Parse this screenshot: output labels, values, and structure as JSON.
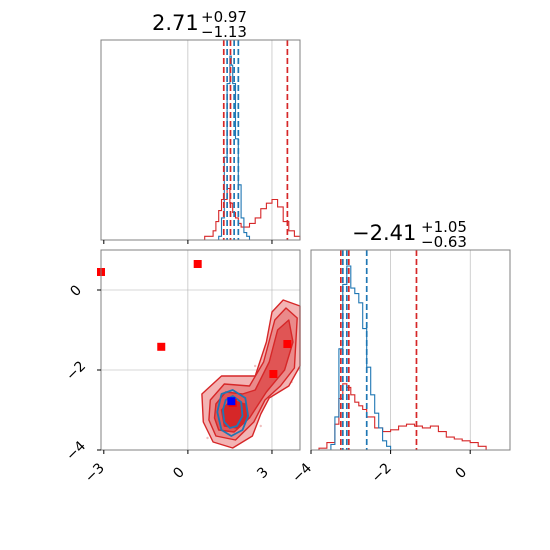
{
  "colors": {
    "red": "#d62728",
    "blue": "#1f77b4",
    "marker_blue": "#0000ff",
    "marker_red": "#ff0000",
    "grid": "#b0b0b0"
  },
  "titles": {
    "p1": {
      "median": "2.71",
      "plus": "+0.97",
      "minus": "−1.13"
    },
    "p2": {
      "median": "−2.41",
      "plus": "+1.05",
      "minus": "−0.63"
    }
  },
  "chart_data": [
    {
      "panel": "marginal-p1",
      "type": "histogram",
      "xlim": [
        -3.1,
        4.0
      ],
      "grid": true,
      "series": [
        {
          "color": "red",
          "x": [
            -3.1,
            -2.5,
            -1.5,
            -0.5,
            0.3,
            0.6,
            0.9,
            1.0,
            1.1,
            1.2,
            1.3,
            1.4,
            1.5,
            1.6,
            1.7,
            1.8,
            1.9,
            2.0,
            2.2,
            2.4,
            2.6,
            2.8,
            3.0,
            3.2,
            3.4,
            3.6,
            3.8,
            4.0
          ],
          "y": [
            0,
            0,
            0,
            0,
            0,
            0.02,
            0.05,
            0.1,
            0.16,
            0.22,
            0.22,
            0.28,
            0.2,
            0.15,
            0.12,
            0.09,
            0.07,
            0.07,
            0.09,
            0.12,
            0.17,
            0.2,
            0.22,
            0.18,
            0.1,
            0.05,
            0.02,
            0
          ]
        },
        {
          "color": "blue",
          "x": [
            0.9,
            1.1,
            1.2,
            1.3,
            1.4,
            1.5,
            1.55,
            1.6,
            1.7,
            1.8,
            1.9,
            2.0,
            2.1,
            2.2
          ],
          "y": [
            0,
            0.02,
            0.12,
            0.45,
            0.85,
            1.0,
            0.95,
            0.85,
            0.55,
            0.3,
            0.12,
            0.04,
            0.02,
            0
          ]
        }
      ],
      "vlines": [
        {
          "color": "red",
          "x": [
            1.28,
            1.52,
            3.55
          ]
        },
        {
          "color": "blue",
          "x": [
            1.4,
            1.65,
            1.8
          ]
        }
      ]
    },
    {
      "panel": "marginal-p2",
      "type": "histogram",
      "xlim": [
        -4.0,
        1.0
      ],
      "grid": true,
      "series": [
        {
          "color": "red",
          "x": [
            -4.0,
            -3.8,
            -3.6,
            -3.4,
            -3.3,
            -3.2,
            -3.1,
            -3.0,
            -2.9,
            -2.8,
            -2.7,
            -2.6,
            -2.4,
            -2.2,
            -2.0,
            -1.8,
            -1.6,
            -1.4,
            -1.2,
            -1.0,
            -0.8,
            -0.6,
            -0.4,
            -0.2,
            0.0,
            0.2,
            0.4
          ],
          "y": [
            0,
            0.01,
            0.04,
            0.14,
            0.28,
            0.36,
            0.34,
            0.3,
            0.26,
            0.24,
            0.22,
            0.18,
            0.12,
            0.1,
            0.11,
            0.13,
            0.14,
            0.13,
            0.12,
            0.13,
            0.1,
            0.07,
            0.06,
            0.05,
            0.04,
            0.02,
            0
          ]
        },
        {
          "color": "blue",
          "x": [
            -3.7,
            -3.5,
            -3.4,
            -3.3,
            -3.2,
            -3.1,
            -3.0,
            -2.9,
            -2.8,
            -2.7,
            -2.6,
            -2.5,
            -2.4,
            -2.3,
            -2.2,
            -2.1,
            -2.0
          ],
          "y": [
            0,
            0.03,
            0.18,
            0.55,
            0.9,
            1.0,
            0.88,
            0.85,
            0.8,
            0.66,
            0.45,
            0.3,
            0.2,
            0.12,
            0.05,
            0.02,
            0
          ]
        }
      ],
      "vlines": [
        {
          "color": "red",
          "x": [
            -3.25,
            -3.05,
            -1.35
          ]
        },
        {
          "color": "blue",
          "x": [
            -3.2,
            -3.1,
            -2.6
          ]
        }
      ]
    },
    {
      "panel": "joint",
      "type": "scatter",
      "xlim": [
        -3.1,
        4.0
      ],
      "ylim": [
        -4.0,
        1.0
      ],
      "grid": true,
      "x_ticks": [
        -3,
        0,
        3
      ],
      "y_ticks": [
        0,
        -2,
        -4
      ],
      "contours": [
        {
          "color": "red",
          "level": 1,
          "points": [
            [
              0.5,
              -2.6
            ],
            [
              1.2,
              -2.15
            ],
            [
              2.4,
              -2.15
            ],
            [
              2.8,
              -1.3
            ],
            [
              3.0,
              -0.55
            ],
            [
              3.4,
              -0.25
            ],
            [
              4.0,
              -0.4
            ],
            [
              4.0,
              -1.9
            ],
            [
              3.6,
              -2.4
            ],
            [
              2.9,
              -2.7
            ],
            [
              2.6,
              -3.1
            ],
            [
              2.3,
              -3.65
            ],
            [
              1.6,
              -3.95
            ],
            [
              0.9,
              -3.8
            ],
            [
              0.55,
              -3.3
            ]
          ]
        },
        {
          "color": "red",
          "level": 2,
          "points": [
            [
              0.8,
              -2.75
            ],
            [
              1.3,
              -2.35
            ],
            [
              2.2,
              -2.4
            ],
            [
              2.7,
              -1.8
            ],
            [
              3.1,
              -0.75
            ],
            [
              3.5,
              -0.45
            ],
            [
              3.9,
              -0.7
            ],
            [
              3.8,
              -1.95
            ],
            [
              3.3,
              -2.4
            ],
            [
              2.75,
              -2.75
            ],
            [
              2.35,
              -3.3
            ],
            [
              1.7,
              -3.75
            ],
            [
              1.0,
              -3.65
            ],
            [
              0.75,
              -3.25
            ]
          ]
        },
        {
          "color": "red",
          "level": 3,
          "points": [
            [
              1.0,
              -2.85
            ],
            [
              1.35,
              -2.55
            ],
            [
              1.95,
              -2.6
            ],
            [
              2.4,
              -2.5
            ],
            [
              2.9,
              -1.8
            ],
            [
              3.2,
              -1.0
            ],
            [
              3.6,
              -0.75
            ],
            [
              3.75,
              -1.3
            ],
            [
              3.45,
              -2.0
            ],
            [
              2.8,
              -2.55
            ],
            [
              2.2,
              -3.2
            ],
            [
              1.65,
              -3.55
            ],
            [
              1.1,
              -3.5
            ],
            [
              0.95,
              -3.2
            ]
          ]
        },
        {
          "color": "red",
          "level": 4,
          "points": [
            [
              1.2,
              -3.0
            ],
            [
              1.55,
              -2.75
            ],
            [
              2.05,
              -2.85
            ],
            [
              2.15,
              -3.2
            ],
            [
              1.75,
              -3.45
            ],
            [
              1.3,
              -3.4
            ]
          ]
        },
        {
          "color": "blue",
          "level": 1,
          "points": [
            [
              1.2,
              -2.6
            ],
            [
              1.6,
              -2.5
            ],
            [
              2.05,
              -2.7
            ],
            [
              2.15,
              -3.15
            ],
            [
              1.95,
              -3.5
            ],
            [
              1.55,
              -3.65
            ],
            [
              1.2,
              -3.5
            ],
            [
              1.05,
              -3.05
            ]
          ]
        },
        {
          "color": "blue",
          "level": 2,
          "points": [
            [
              1.35,
              -2.75
            ],
            [
              1.6,
              -2.65
            ],
            [
              1.9,
              -2.8
            ],
            [
              1.95,
              -3.15
            ],
            [
              1.75,
              -3.4
            ],
            [
              1.5,
              -3.45
            ],
            [
              1.3,
              -3.3
            ],
            [
              1.25,
              -3.0
            ]
          ]
        }
      ],
      "markers": [
        {
          "color": "marker_red",
          "points": [
            [
              -3.1,
              0.45
            ],
            [
              -0.95,
              -1.42
            ],
            [
              0.35,
              0.65
            ],
            [
              1.6,
              -2.82
            ],
            [
              3.55,
              -1.35
            ],
            [
              3.05,
              -2.1
            ]
          ]
        },
        {
          "color": "marker_blue",
          "points": [
            [
              1.55,
              -2.78
            ]
          ]
        }
      ]
    }
  ]
}
